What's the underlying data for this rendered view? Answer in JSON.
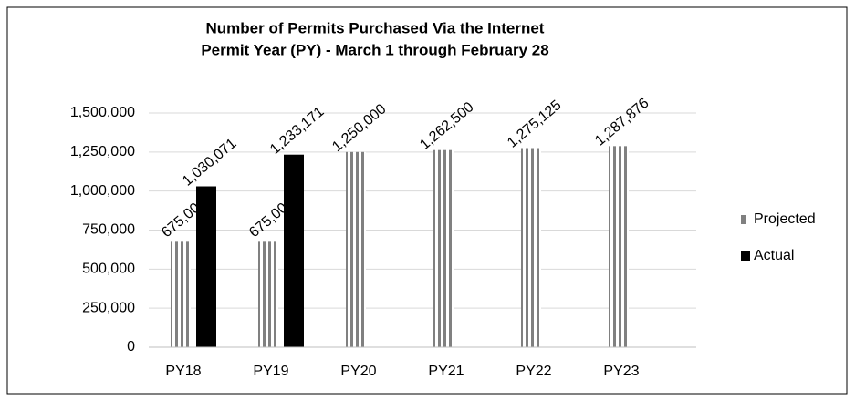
{
  "chart_data": {
    "type": "bar",
    "title": "Number of Permits Purchased Via the Internet",
    "subtitle": "Permit Year (PY) - March 1 through February 28",
    "categories": [
      "PY18",
      "PY19",
      "PY20",
      "PY21",
      "PY22",
      "PY23"
    ],
    "series": [
      {
        "name": "Projected",
        "color": "#808080",
        "pattern": "vertical-stripes",
        "values": [
          675000,
          675000,
          1250000,
          1262500,
          1275125,
          1287876
        ],
        "value_labels": [
          "675,000",
          "675,000",
          "1,250,000",
          "1,262,500",
          "1,275,125",
          "1,287,876"
        ]
      },
      {
        "name": "Actual",
        "color": "#000000",
        "values": [
          1030071,
          1233171,
          null,
          null,
          null,
          null
        ],
        "value_labels": [
          "1,030,071",
          "1,233,171",
          null,
          null,
          null,
          null
        ]
      }
    ],
    "ylim": [
      0,
      1500000
    ],
    "yticks": [
      0,
      {
        "value": 250000,
        "label": "250,000"
      },
      {
        "value": 500000,
        "label": "500,000"
      },
      {
        "value": 750000,
        "label": "750,000"
      },
      {
        "value": 1000000,
        "label": "1,000,000"
      },
      {
        "value": 1250000,
        "label": "1,250,000"
      },
      {
        "value": 1500000,
        "label": "1,500,000"
      }
    ],
    "grid": true,
    "legend": "right"
  }
}
